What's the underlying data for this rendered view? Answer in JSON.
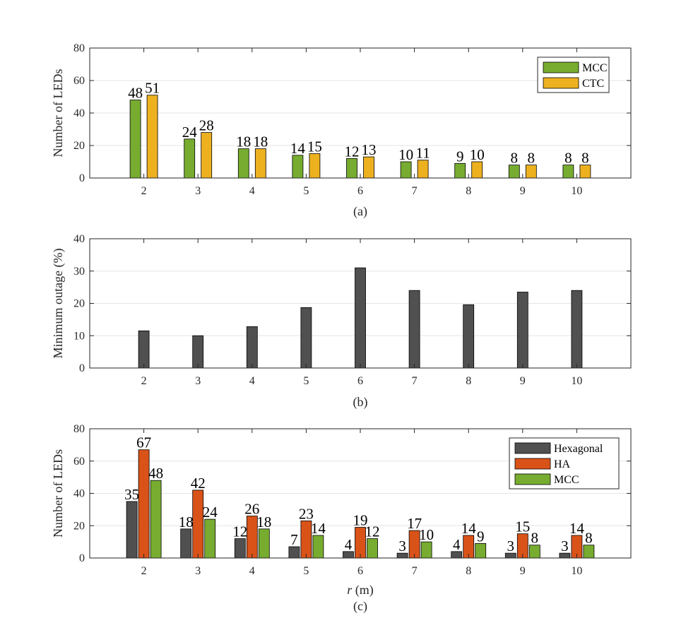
{
  "chart_data": [
    {
      "type": "bar",
      "subcaption": "(a)",
      "categories": [
        "2",
        "3",
        "4",
        "5",
        "6",
        "7",
        "8",
        "9",
        "10"
      ],
      "xlabel": "",
      "ylabel": "Number of LEDs",
      "ylim": [
        0,
        80
      ],
      "yticks": [
        "0",
        "20",
        "40",
        "60",
        "80"
      ],
      "grid": true,
      "legend_position": "top-right",
      "show_data_labels": true,
      "series": [
        {
          "name": "MCC",
          "color": "#77AC30",
          "values": [
            48,
            24,
            18,
            14,
            12,
            10,
            9,
            8,
            8
          ]
        },
        {
          "name": "CTC",
          "color": "#EDB120",
          "values": [
            51,
            28,
            18,
            15,
            13,
            11,
            10,
            8,
            8
          ]
        }
      ]
    },
    {
      "type": "bar",
      "subcaption": "(b)",
      "categories": [
        "2",
        "3",
        "4",
        "5",
        "6",
        "7",
        "8",
        "9",
        "10"
      ],
      "xlabel": "",
      "ylabel": "Minimum outage (%)",
      "ylim": [
        0,
        40
      ],
      "yticks": [
        "0",
        "10",
        "20",
        "30",
        "40"
      ],
      "grid": true,
      "legend_position": "none",
      "show_data_labels": false,
      "series": [
        {
          "name": "Minimum outage",
          "color": "#505050",
          "values": [
            11.5,
            10,
            12.8,
            18.7,
            31,
            24,
            19.6,
            23.5,
            24
          ]
        }
      ]
    },
    {
      "type": "bar",
      "subcaption": "(c)",
      "categories": [
        "2",
        "3",
        "4",
        "5",
        "6",
        "7",
        "8",
        "9",
        "10"
      ],
      "xlabel_var": "r",
      "xlabel_unit": " (m)",
      "ylabel": "Number of LEDs",
      "ylim": [
        0,
        80
      ],
      "yticks": [
        "0",
        "20",
        "40",
        "60",
        "80"
      ],
      "grid": true,
      "legend_position": "top-right",
      "show_data_labels": true,
      "series": [
        {
          "name": "Hexagonal",
          "color": "#505050",
          "values": [
            35,
            18,
            12,
            7,
            4,
            3,
            4,
            3,
            3
          ]
        },
        {
          "name": "HA",
          "color": "#D95319",
          "values": [
            67,
            42,
            26,
            23,
            19,
            17,
            14,
            15,
            14
          ]
        },
        {
          "name": "MCC",
          "color": "#77AC30",
          "values": [
            48,
            24,
            18,
            14,
            12,
            10,
            9,
            8,
            8
          ]
        }
      ]
    }
  ]
}
